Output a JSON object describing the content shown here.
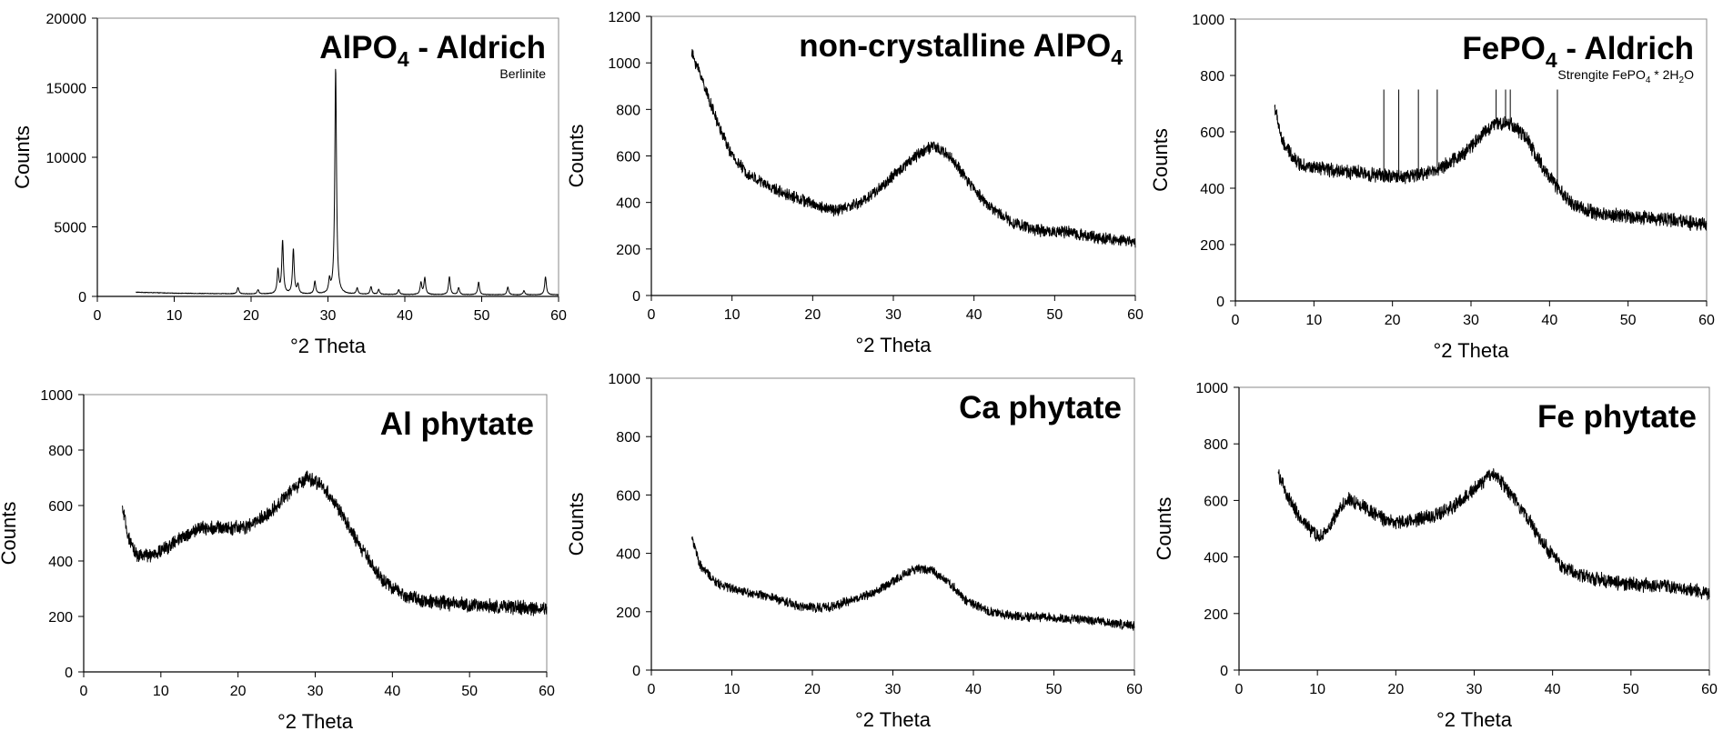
{
  "figure": {
    "panels": [
      {
        "title_main": "AlPO",
        "title_sub": "4",
        "title_rest": " - Aldrich",
        "note_main": "Berlinite",
        "note_sub": "",
        "note_rest": "",
        "xlabel": "°2 Theta",
        "ylabel": "Counts"
      },
      {
        "title_main": "non-crystalline AlPO",
        "title_sub": "4",
        "title_rest": "",
        "note_main": "",
        "note_sub": "",
        "note_rest": "",
        "xlabel": "°2 Theta",
        "ylabel": "Counts"
      },
      {
        "title_main": "FePO",
        "title_sub": "4",
        "title_rest": " - Aldrich",
        "note_main": "Strengite FePO",
        "note_sub": "4",
        "note_rest": " * 2H",
        "note_sub2": "2",
        "note_rest2": "O",
        "xlabel": "°2 Theta",
        "ylabel": "Counts"
      },
      {
        "title_main": "Al phytate",
        "title_sub": "",
        "title_rest": "",
        "xlabel": "°2 Theta",
        "ylabel": "Counts"
      },
      {
        "title_main": "Ca phytate",
        "title_sub": "",
        "title_rest": "",
        "xlabel": "°2 Theta",
        "ylabel": "Counts"
      },
      {
        "title_main": "Fe phytate",
        "title_sub": "",
        "title_rest": "",
        "xlabel": "°2 Theta",
        "ylabel": "Counts"
      }
    ]
  },
  "chart_data": [
    {
      "type": "line",
      "title": "AlPO4 - Aldrich",
      "annotation": "Berlinite",
      "xlabel": "°2 Theta",
      "ylabel": "Counts",
      "xlim": [
        0,
        60
      ],
      "ylim": [
        0,
        20000
      ],
      "xticks": [
        0,
        10,
        20,
        30,
        40,
        50,
        60
      ],
      "yticks": [
        0,
        5000,
        10000,
        15000,
        20000
      ],
      "x_start": 5,
      "baseline": [
        [
          5,
          300
        ],
        [
          10,
          230
        ],
        [
          20,
          170
        ],
        [
          30,
          150
        ],
        [
          40,
          130
        ],
        [
          50,
          120
        ],
        [
          60,
          110
        ]
      ],
      "noise": 20,
      "peaks": [
        [
          18.3,
          450
        ],
        [
          20.9,
          300
        ],
        [
          23.5,
          1700
        ],
        [
          24.1,
          3800
        ],
        [
          25.5,
          3200
        ],
        [
          26.1,
          650
        ],
        [
          28.3,
          900
        ],
        [
          30.2,
          900
        ],
        [
          31.0,
          16300
        ],
        [
          33.8,
          450
        ],
        [
          35.6,
          550
        ],
        [
          36.6,
          350
        ],
        [
          39.2,
          350
        ],
        [
          42.1,
          850
        ],
        [
          42.6,
          1200
        ],
        [
          45.8,
          1300
        ],
        [
          47.0,
          500
        ],
        [
          49.6,
          900
        ],
        [
          53.4,
          550
        ],
        [
          55.5,
          300
        ],
        [
          58.3,
          1300
        ]
      ],
      "peak_width": 0.13,
      "grid": false
    },
    {
      "type": "line",
      "title": "non-crystalline AlPO4",
      "xlabel": "°2 Theta",
      "ylabel": "Counts",
      "xlim": [
        0,
        60
      ],
      "ylim": [
        0,
        1200
      ],
      "xticks": [
        0,
        10,
        20,
        30,
        40,
        50,
        60
      ],
      "yticks": [
        0,
        200,
        400,
        600,
        800,
        1000,
        1200
      ],
      "x_start": 5,
      "baseline": [
        [
          5,
          1040
        ],
        [
          6,
          960
        ],
        [
          8,
          760
        ],
        [
          10,
          600
        ],
        [
          12,
          520
        ],
        [
          15,
          460
        ],
        [
          18,
          420
        ],
        [
          21,
          380
        ],
        [
          23,
          365
        ],
        [
          26,
          400
        ],
        [
          29,
          480
        ],
        [
          32,
          580
        ],
        [
          34,
          630
        ],
        [
          35,
          640
        ],
        [
          37,
          600
        ],
        [
          39,
          500
        ],
        [
          42,
          380
        ],
        [
          45,
          310
        ],
        [
          48,
          280
        ],
        [
          52,
          270
        ],
        [
          55,
          250
        ],
        [
          60,
          230
        ]
      ],
      "noise": 22,
      "spikes": [],
      "grid": false
    },
    {
      "type": "line",
      "title": "FePO4 - Aldrich",
      "annotation": "Strengite FePO4 * 2H2O",
      "xlabel": "°2 Theta",
      "ylabel": "Counts",
      "xlim": [
        0,
        60
      ],
      "ylim": [
        0,
        1000
      ],
      "xticks": [
        0,
        10,
        20,
        30,
        40,
        50,
        60
      ],
      "yticks": [
        0,
        200,
        400,
        600,
        800,
        1000
      ],
      "x_start": 5,
      "baseline": [
        [
          5,
          690
        ],
        [
          6,
          560
        ],
        [
          8,
          490
        ],
        [
          10,
          470
        ],
        [
          14,
          460
        ],
        [
          17,
          450
        ],
        [
          20,
          440
        ],
        [
          23,
          445
        ],
        [
          26,
          470
        ],
        [
          29,
          520
        ],
        [
          31,
          580
        ],
        [
          33,
          630
        ],
        [
          35,
          630
        ],
        [
          37,
          580
        ],
        [
          39,
          480
        ],
        [
          41,
          400
        ],
        [
          43,
          340
        ],
        [
          46,
          310
        ],
        [
          50,
          300
        ],
        [
          55,
          290
        ],
        [
          60,
          270
        ]
      ],
      "noise": 22,
      "spikes": [
        18.9,
        20.8,
        23.3,
        25.7,
        33.2,
        34.4,
        35.0,
        41.0
      ],
      "spike_top": 750,
      "grid": false
    },
    {
      "type": "line",
      "title": "Al phytate",
      "xlabel": "°2 Theta",
      "ylabel": "Counts",
      "xlim": [
        0,
        60
      ],
      "ylim": [
        0,
        1000
      ],
      "xticks": [
        0,
        10,
        20,
        30,
        40,
        50,
        60
      ],
      "yticks": [
        0,
        200,
        400,
        600,
        800,
        1000
      ],
      "x_start": 5,
      "baseline": [
        [
          5,
          590
        ],
        [
          6,
          460
        ],
        [
          7,
          420
        ],
        [
          9,
          420
        ],
        [
          12,
          470
        ],
        [
          15,
          520
        ],
        [
          18,
          520
        ],
        [
          21,
          520
        ],
        [
          24,
          570
        ],
        [
          26,
          630
        ],
        [
          28,
          680
        ],
        [
          29,
          700
        ],
        [
          31,
          670
        ],
        [
          33,
          590
        ],
        [
          35,
          490
        ],
        [
          37,
          400
        ],
        [
          39,
          320
        ],
        [
          42,
          270
        ],
        [
          46,
          250
        ],
        [
          50,
          240
        ],
        [
          55,
          235
        ],
        [
          60,
          225
        ]
      ],
      "noise": 22,
      "spikes": [],
      "grid": false
    },
    {
      "type": "line",
      "title": "Ca phytate",
      "xlabel": "°2 Theta",
      "ylabel": "Counts",
      "xlim": [
        0,
        60
      ],
      "ylim": [
        0,
        1000
      ],
      "xticks": [
        0,
        10,
        20,
        30,
        40,
        50,
        60
      ],
      "yticks": [
        0,
        200,
        400,
        600,
        800,
        1000
      ],
      "x_start": 5,
      "baseline": [
        [
          5,
          460
        ],
        [
          6,
          360
        ],
        [
          8,
          300
        ],
        [
          10,
          280
        ],
        [
          13,
          260
        ],
        [
          16,
          240
        ],
        [
          19,
          215
        ],
        [
          22,
          215
        ],
        [
          25,
          240
        ],
        [
          28,
          270
        ],
        [
          31,
          320
        ],
        [
          33,
          350
        ],
        [
          35,
          340
        ],
        [
          37,
          300
        ],
        [
          39,
          240
        ],
        [
          42,
          200
        ],
        [
          45,
          185
        ],
        [
          50,
          180
        ],
        [
          55,
          170
        ],
        [
          60,
          150
        ]
      ],
      "noise": 14,
      "spikes": [],
      "grid": false
    },
    {
      "type": "line",
      "title": "Fe phytate",
      "xlabel": "°2 Theta",
      "ylabel": "Counts",
      "xlim": [
        0,
        60
      ],
      "ylim": [
        0,
        1000
      ],
      "xticks": [
        0,
        10,
        20,
        30,
        40,
        50,
        60
      ],
      "yticks": [
        0,
        200,
        400,
        600,
        800,
        1000
      ],
      "x_start": 5,
      "baseline": [
        [
          5,
          700
        ],
        [
          6,
          620
        ],
        [
          8,
          530
        ],
        [
          10,
          470
        ],
        [
          11,
          480
        ],
        [
          13,
          580
        ],
        [
          14,
          600
        ],
        [
          16,
          580
        ],
        [
          18,
          540
        ],
        [
          20,
          520
        ],
        [
          24,
          540
        ],
        [
          27,
          570
        ],
        [
          30,
          640
        ],
        [
          32,
          690
        ],
        [
          33,
          680
        ],
        [
          35,
          610
        ],
        [
          37,
          530
        ],
        [
          39,
          440
        ],
        [
          41,
          370
        ],
        [
          44,
          330
        ],
        [
          48,
          310
        ],
        [
          52,
          300
        ],
        [
          56,
          290
        ],
        [
          60,
          270
        ]
      ],
      "noise": 22,
      "spikes": [],
      "grid": false
    }
  ]
}
